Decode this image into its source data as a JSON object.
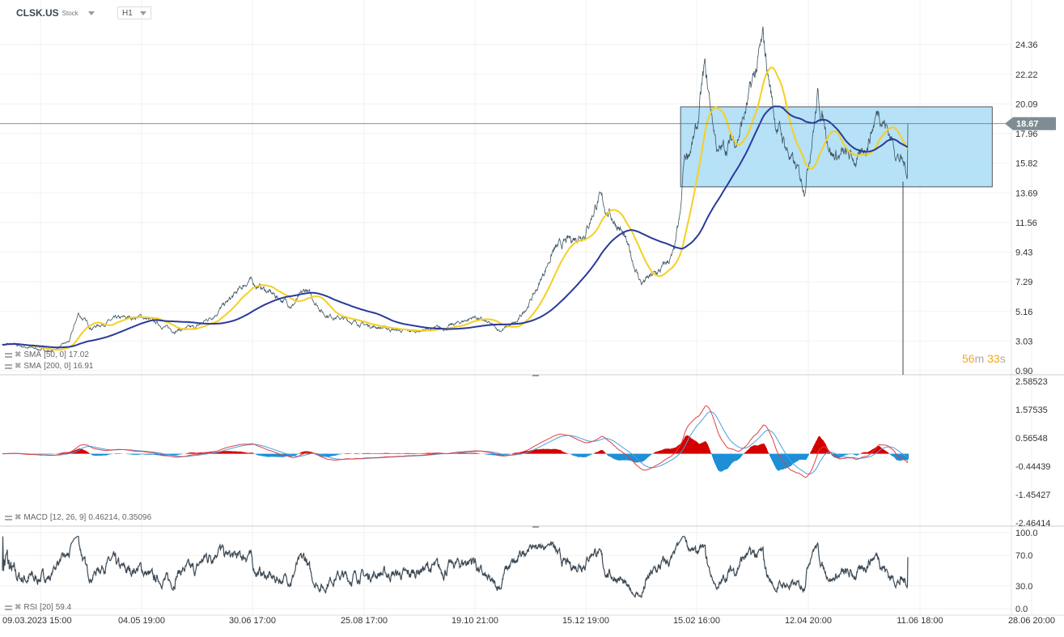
{
  "header": {
    "symbol": "CLSK.US",
    "type": "Stock",
    "timeframe": "H1"
  },
  "timer": {
    "minutes": "56",
    "m": "m",
    "seconds": "33",
    "s": "s"
  },
  "legend": {
    "sma50": {
      "label": "SMA",
      "params": "[50,  0]",
      "value": "17.02"
    },
    "sma200": {
      "label": "SMA",
      "params": "[200,  0]",
      "value": "16.91"
    },
    "macd": {
      "label": "MACD",
      "params": "[12, 26, 9]",
      "value": "0.46214,  0.35096"
    },
    "rsi": {
      "label": "RSI",
      "params": "[20]",
      "value": "59.4"
    }
  },
  "colors": {
    "price": "#3d5463",
    "sma50": "#f5d020",
    "sma200": "#2a3a9a",
    "rect_fill": "#a9dcf5",
    "rect_stroke": "#333333",
    "macd_pos": "#d40000",
    "macd_neg": "#1e8fd6",
    "macd_line": "#e04040",
    "signal_line": "#4a9fe0",
    "rsi": "#3d4a55",
    "current_price_tag": "#7f8c93",
    "timer": "#f5a623"
  },
  "chart_data": [
    {
      "type": "line",
      "name": "price",
      "x_ticks": [
        "09.03.2023  15:00",
        "04.05  19:00",
        "30.06  17:00",
        "25.08  17:00",
        "19.10  21:00",
        "15.12  19:00",
        "15.02  16:00",
        "12.04  20:00",
        "11.06  18:00",
        "28.06  20:00"
      ],
      "y_ticks": [
        "24.36",
        "22.22",
        "20.09",
        "17.96",
        "15.82",
        "13.69",
        "11.56",
        "9.43",
        "7.29",
        "5.16",
        "3.03",
        "0.90"
      ],
      "ylim": [
        0.9,
        24.36
      ],
      "current_price": "18.67",
      "points": [
        [
          "2023-02-20",
          2.8
        ],
        [
          "2023-03-01",
          2.6
        ],
        [
          "2023-03-15",
          2.3
        ],
        [
          "2023-03-25",
          3.0
        ],
        [
          "2023-03-30",
          5.0
        ],
        [
          "2023-04-06",
          4.0
        ],
        [
          "2023-04-20",
          4.6
        ],
        [
          "2023-05-04",
          4.8
        ],
        [
          "2023-05-20",
          3.8
        ],
        [
          "2023-06-01",
          4.0
        ],
        [
          "2023-06-10",
          4.9
        ],
        [
          "2023-06-20",
          6.2
        ],
        [
          "2023-06-28",
          7.4
        ],
        [
          "2023-07-10",
          6.4
        ],
        [
          "2023-07-20",
          5.6
        ],
        [
          "2023-07-27",
          6.7
        ],
        [
          "2023-08-05",
          5.0
        ],
        [
          "2023-08-25",
          4.2
        ],
        [
          "2023-09-15",
          3.7
        ],
        [
          "2023-10-05",
          4.0
        ],
        [
          "2023-10-19",
          4.8
        ],
        [
          "2023-11-01",
          3.8
        ],
        [
          "2023-11-10",
          4.4
        ],
        [
          "2023-11-20",
          6.8
        ],
        [
          "2023-11-28",
          9.5
        ],
        [
          "2023-12-15",
          11.0
        ],
        [
          "2023-12-22",
          13.3
        ],
        [
          "2024-01-03",
          11.2
        ],
        [
          "2024-01-15",
          7.2
        ],
        [
          "2024-01-25",
          8.0
        ],
        [
          "2024-02-02",
          9.2
        ],
        [
          "2024-02-06",
          12.0
        ],
        [
          "2024-02-08",
          16.0
        ],
        [
          "2024-02-15",
          18.0
        ],
        [
          "2024-02-19",
          22.5
        ],
        [
          "2024-02-26",
          16.5
        ],
        [
          "2024-03-07",
          17.8
        ],
        [
          "2024-03-12",
          20.0
        ],
        [
          "2024-03-20",
          24.5
        ],
        [
          "2024-03-26",
          19.0
        ],
        [
          "2024-04-05",
          15.5
        ],
        [
          "2024-04-10",
          14.2
        ],
        [
          "2024-04-17",
          20.5
        ],
        [
          "2024-04-25",
          16.5
        ],
        [
          "2024-05-10",
          16.0
        ],
        [
          "2024-05-20",
          19.8
        ],
        [
          "2024-05-30",
          16.5
        ],
        [
          "2024-06-05",
          15.0
        ],
        [
          "2024-06-10",
          18.67
        ]
      ],
      "rectangle": {
        "from": "2024-02-06",
        "to": "2024-06-22",
        "top": 19.88,
        "bottom": 14.12
      }
    },
    {
      "type": "bar+line",
      "name": "MACD",
      "y_ticks": [
        "2.58523",
        "1.57535",
        "0.56548",
        "-0.44439",
        "-1.45427",
        "-2.46414"
      ],
      "ylim": [
        -2.46414,
        2.58523
      ]
    },
    {
      "type": "line",
      "name": "RSI",
      "y_ticks": [
        "100.0",
        "70.0",
        "30.0",
        "0.0"
      ],
      "ylim": [
        0,
        100
      ]
    }
  ]
}
